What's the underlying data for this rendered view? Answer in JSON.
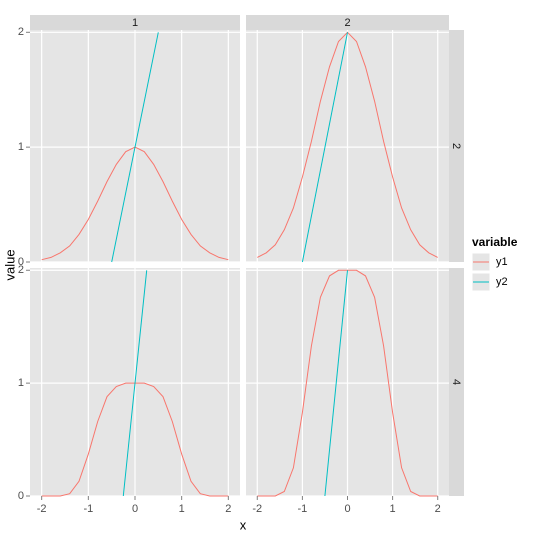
{
  "chart_data": {
    "type": "line",
    "xlabel": "x",
    "ylabel": "value",
    "legend_title": "variable",
    "col_labels": [
      "1",
      "2"
    ],
    "row_labels": [
      "2",
      "4"
    ],
    "xlim": [
      -2.25,
      2.25
    ],
    "ylim": [
      0,
      2.02
    ],
    "xticks": [
      -2,
      -1,
      0,
      1,
      2
    ],
    "yticks": [
      0,
      1,
      2
    ],
    "grid": true,
    "panels": [
      {
        "series": [
          {
            "name": "y1",
            "color": "#F8766D",
            "x": [
              -2,
              -1.8,
              -1.6,
              -1.4,
              -1.2,
              -1,
              -0.8,
              -0.6,
              -0.4,
              -0.2,
              0,
              0.2,
              0.4,
              0.6,
              0.8,
              1,
              1.2,
              1.4,
              1.6,
              1.8,
              2
            ],
            "values": [
              0.02,
              0.04,
              0.08,
              0.14,
              0.24,
              0.37,
              0.53,
              0.7,
              0.85,
              0.96,
              1,
              0.96,
              0.85,
              0.7,
              0.53,
              0.37,
              0.24,
              0.14,
              0.08,
              0.04,
              0.02
            ]
          },
          {
            "name": "y2",
            "color": "#00BFC4",
            "x": [
              -0.5,
              0.5
            ],
            "values": [
              0,
              2
            ]
          }
        ]
      },
      {
        "series": [
          {
            "name": "y1",
            "color": "#F8766D",
            "x": [
              -2,
              -1.8,
              -1.6,
              -1.4,
              -1.2,
              -1,
              -0.8,
              -0.6,
              -0.4,
              -0.2,
              0,
              0.2,
              0.4,
              0.6,
              0.8,
              1,
              1.2,
              1.4,
              1.6,
              1.8,
              2
            ],
            "values": [
              0.04,
              0.08,
              0.15,
              0.28,
              0.47,
              0.74,
              1.05,
              1.4,
              1.7,
              1.92,
              2,
              1.92,
              1.7,
              1.4,
              1.05,
              0.74,
              0.47,
              0.28,
              0.15,
              0.08,
              0.04
            ]
          },
          {
            "name": "y2",
            "color": "#00BFC4",
            "x": [
              -1,
              0
            ],
            "values": [
              0,
              2
            ]
          }
        ]
      },
      {
        "series": [
          {
            "name": "y1",
            "color": "#F8766D",
            "x": [
              -2,
              -1.8,
              -1.6,
              -1.4,
              -1.2,
              -1,
              -0.8,
              -0.6,
              -0.4,
              -0.2,
              0,
              0.2,
              0.4,
              0.6,
              0.8,
              1,
              1.2,
              1.4,
              1.6,
              1.8,
              2
            ],
            "values": [
              0,
              0,
              0,
              0.02,
              0.13,
              0.37,
              0.66,
              0.88,
              0.97,
              1,
              1,
              1,
              0.97,
              0.88,
              0.66,
              0.37,
              0.13,
              0.02,
              0,
              0,
              0
            ]
          },
          {
            "name": "y2",
            "color": "#00BFC4",
            "x": [
              -0.25,
              0.25
            ],
            "values": [
              0,
              2
            ]
          }
        ]
      },
      {
        "series": [
          {
            "name": "y1",
            "color": "#F8766D",
            "x": [
              -2,
              -1.8,
              -1.6,
              -1.4,
              -1.2,
              -1,
              -0.8,
              -0.6,
              -0.4,
              -0.2,
              0,
              0.2,
              0.4,
              0.6,
              0.8,
              1,
              1.2,
              1.4,
              1.6,
              1.8,
              2
            ],
            "values": [
              0,
              0,
              0,
              0.04,
              0.25,
              0.74,
              1.33,
              1.76,
              1.95,
              2,
              2,
              2,
              1.95,
              1.76,
              1.33,
              0.74,
              0.25,
              0.04,
              0,
              0,
              0
            ]
          },
          {
            "name": "y2",
            "color": "#00BFC4",
            "x": [
              -0.5,
              0
            ],
            "values": [
              0,
              2
            ]
          }
        ]
      }
    ]
  }
}
